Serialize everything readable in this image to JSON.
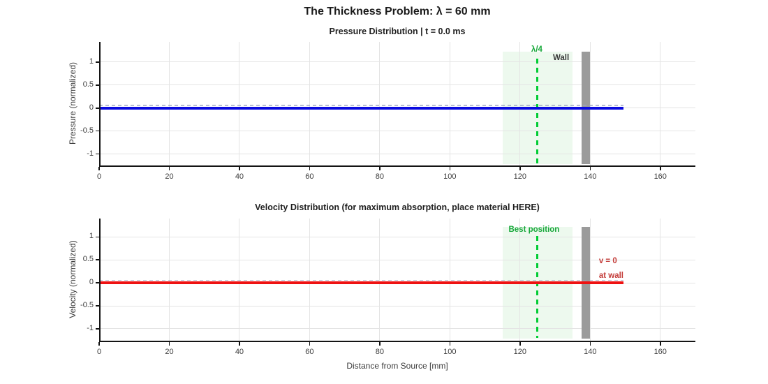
{
  "figure": {
    "title": "The Thickness Problem: λ = 60 mm",
    "xlabel": "Distance from Source [mm]"
  },
  "colors": {
    "pressure_line": "#0a0ae0",
    "velocity_line": "#ee1212",
    "overlay_dash": "#9ba3c0",
    "band_fill": "#edf9ee",
    "marker_green": "#00cc33",
    "green_label": "#17a83a",
    "wall_gray": "#9b9b9b",
    "wall_label": "#3a3a3a",
    "red_label": "#c43c39",
    "grid": "#e4e4e4",
    "axis": "#141414",
    "tick_text": "#3b3b3b"
  },
  "chart_data": [
    {
      "type": "line",
      "title": "Pressure Distribution | t = 0.0 ms",
      "ylabel": "Pressure (normalized)",
      "xlim": [
        0,
        170
      ],
      "ylim": [
        -1.28,
        1.44
      ],
      "xticks": [
        0,
        20,
        40,
        60,
        80,
        100,
        120,
        140,
        160
      ],
      "yticks": [
        1,
        0.5,
        0,
        -0.5,
        -1
      ],
      "grid": true,
      "series": [
        {
          "name": "pressure",
          "color_key": "pressure_line",
          "kind": "solid",
          "y_value": 0,
          "x_range": [
            0,
            149.5
          ]
        },
        {
          "name": "pressure-overlay",
          "color_key": "overlay_dash",
          "kind": "dashed",
          "y_value": 0.05,
          "x_range": [
            0,
            149.5
          ]
        }
      ],
      "band": {
        "x_range": [
          115,
          135
        ],
        "y_range": [
          -1.22,
          1.22
        ]
      },
      "marker": {
        "x": 125,
        "y_range": [
          -1.2,
          1.08
        ]
      },
      "wall": {
        "x_range": [
          137.5,
          140
        ],
        "y_range": [
          -1.22,
          1.22
        ]
      },
      "annotations": [
        {
          "name": "lambda-over-4-label",
          "text": "λ/4",
          "x": 124.8,
          "y": 1.27,
          "color_key": "green_label",
          "anchor": "center"
        },
        {
          "name": "wall-label",
          "text": "Wall",
          "x": 131.7,
          "y": 1.09,
          "color_key": "wall_label",
          "anchor": "center"
        }
      ]
    },
    {
      "type": "line",
      "title": "Velocity Distribution (for maximum absorption, place material HERE)",
      "ylabel": "Velocity (normalized)",
      "xlim": [
        0,
        170
      ],
      "ylim": [
        -1.29,
        1.4
      ],
      "xticks": [
        0,
        20,
        40,
        60,
        80,
        100,
        120,
        140,
        160
      ],
      "yticks": [
        1,
        0.5,
        0,
        -0.5,
        -1
      ],
      "grid": true,
      "series": [
        {
          "name": "velocity",
          "color_key": "velocity_line",
          "kind": "solid",
          "y_value": 0,
          "x_range": [
            0,
            149.5
          ]
        },
        {
          "name": "velocity-overlay",
          "color_key": "overlay_dash",
          "kind": "dashed",
          "y_value": 0.05,
          "x_range": [
            0,
            149.5
          ]
        }
      ],
      "band": {
        "x_range": [
          115,
          135
        ],
        "y_range": [
          -1.22,
          1.22
        ]
      },
      "marker": {
        "x": 125,
        "y_range": [
          -1.2,
          1.02
        ]
      },
      "wall": {
        "x_range": [
          137.5,
          140
        ],
        "y_range": [
          -1.22,
          1.22
        ]
      },
      "annotations": [
        {
          "name": "best-position-label",
          "text": "Best position",
          "x": 124,
          "y": 1.16,
          "color_key": "green_label",
          "anchor": "center"
        },
        {
          "name": "v-equals-zero-label",
          "text": "v = 0",
          "x": 142.5,
          "y": 0.47,
          "color_key": "red_label",
          "anchor": "left"
        },
        {
          "name": "at-wall-label",
          "text": "at wall",
          "x": 142.5,
          "y": 0.16,
          "color_key": "red_label",
          "anchor": "left"
        }
      ]
    }
  ]
}
